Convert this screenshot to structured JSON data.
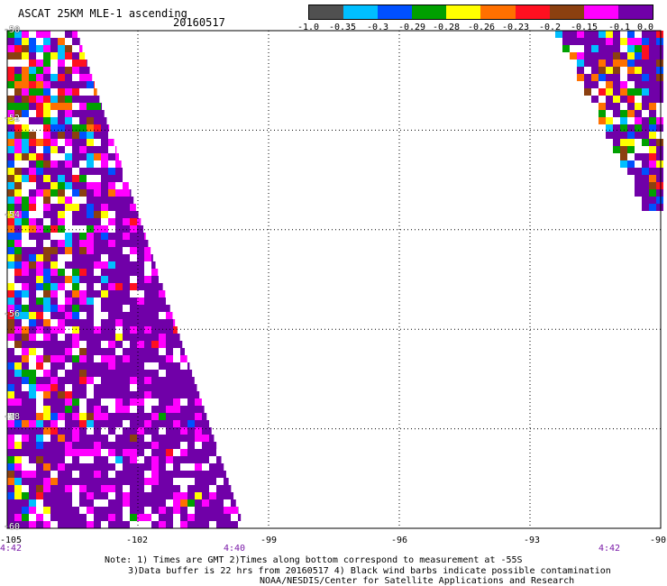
{
  "header": {
    "title": "ASCAT 25KM MLE-1 ascending",
    "date": "20160517"
  },
  "colorbar": {
    "colors": [
      "#505050",
      "#00bfff",
      "#0050ff",
      "#00a000",
      "#ffff00",
      "#ff7000",
      "#ff1020",
      "#8b4010",
      "#ff00ff",
      "#7000a8"
    ],
    "labels": [
      "-1.0",
      "-0.35",
      "-0.3",
      "-0.29",
      "-0.28",
      "-0.26",
      "-0.23",
      "-0.2",
      "-0.15",
      "-0.1",
      "0.0"
    ]
  },
  "map": {
    "lon_range": [
      -105,
      -90
    ],
    "lat_range": [
      -60,
      -50
    ],
    "x_ticks": [
      "-105",
      "-102",
      "-99",
      "-96",
      "-93",
      "-90"
    ],
    "y_ticks": [
      "-50",
      "-52",
      "-54",
      "-56",
      "-58",
      "-60"
    ],
    "times": [
      "4:42",
      "4:40",
      "4:42"
    ]
  },
  "notes": {
    "line1": "Note: 1) Times are GMT 2)Times along bottom correspond to measurement at -55S",
    "line2": "3)Data buffer is 22 hrs from 20160517 4) Black wind barbs indicate possible contamination",
    "line3": "NOAA/NESDIS/Center for Satellite Applications and Research"
  }
}
